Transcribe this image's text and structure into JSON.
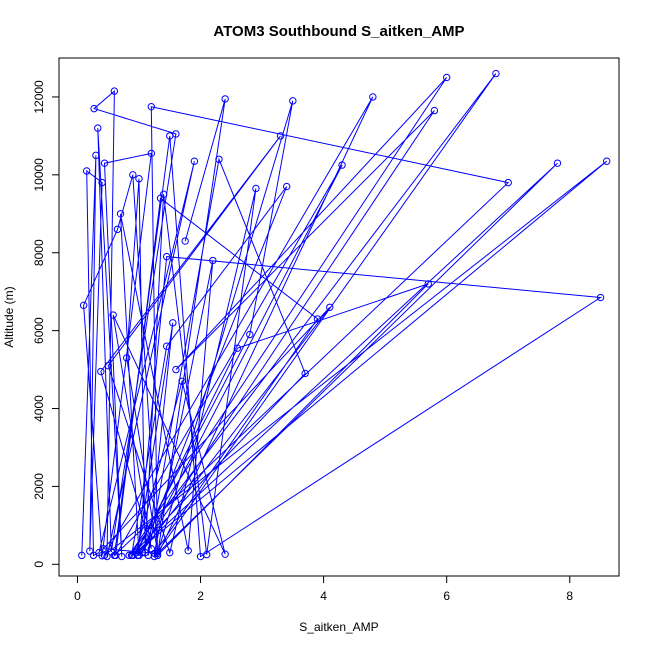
{
  "chart_data": {
    "type": "line",
    "title": "ATOM3 Southbound S_aitken_AMP",
    "xlabel": "S_aitken_AMP",
    "ylabel": "Altitude (m)",
    "xlim": [
      -0.3,
      8.8
    ],
    "ylim": [
      -300,
      13000
    ],
    "xticks": [
      0,
      2,
      4,
      6,
      8
    ],
    "yticks": [
      0,
      2000,
      4000,
      6000,
      8000,
      10000,
      12000
    ],
    "color": "#0000ff",
    "marker": "open-circle",
    "grid": false,
    "series": [
      {
        "x": [
          0.07,
          0.3,
          0.2,
          0.4,
          0.15,
          0.26,
          0.35,
          1.9,
          0.48,
          0.6,
          0.27,
          1.6,
          0.55,
          0.33,
          0.72,
          0.44,
          1.2,
          0.4,
          0.1,
          0.65,
          0.9,
          1.3,
          0.8,
          1.0,
          1.1,
          1.4,
          2.1,
          2.9,
          1.5,
          0.5,
          3.3,
          0.38,
          1.2,
          0.58,
          2.4,
          1.7,
          0.95,
          2.8,
          3.5,
          1.3,
          0.42,
          4.1,
          1.0,
          0.7,
          1.8,
          2.2,
          1.25,
          3.9,
          1.35,
          0.62,
          4.3,
          1.05,
          3.4,
          1.45,
          0.88,
          3.7,
          2.3,
          1.15,
          1.55,
          0.98,
          2.6,
          5.7,
          1.3,
          1.2,
          7.0,
          0.6,
          1.5,
          2.0,
          8.5,
          1.45,
          0.98,
          5.8,
          1.6,
          6.0,
          0.84,
          6.8,
          1.25,
          7.8,
          0.9,
          8.6,
          0.44,
          4.8,
          1.3,
          2.4,
          1.75
        ],
        "y": [
          230,
          10500,
          340,
          9800,
          10100,
          230,
          300,
          10350,
          200,
          12150,
          11700,
          11050,
          320,
          11200,
          200,
          10300,
          10550,
          220,
          6650,
          8600,
          10000,
          320,
          5300,
          9900,
          300,
          9500,
          250,
          9650,
          300,
          5100,
          11000,
          4950,
          400,
          6400,
          260,
          4700,
          300,
          5900,
          11900,
          280,
          400,
          6600,
          230,
          9000,
          350,
          7800,
          280,
          6300,
          9400,
          230,
          10250,
          300,
          9700,
          5600,
          230,
          4900,
          10400,
          230,
          6200,
          350,
          5550,
          7200,
          230,
          11750,
          9800,
          230,
          11000,
          200,
          6850,
          7900,
          230,
          11650,
          5000,
          12500,
          230,
          12600,
          200,
          10300,
          230,
          10350,
          230,
          12000,
          230,
          11950,
          8300
        ]
      }
    ]
  }
}
